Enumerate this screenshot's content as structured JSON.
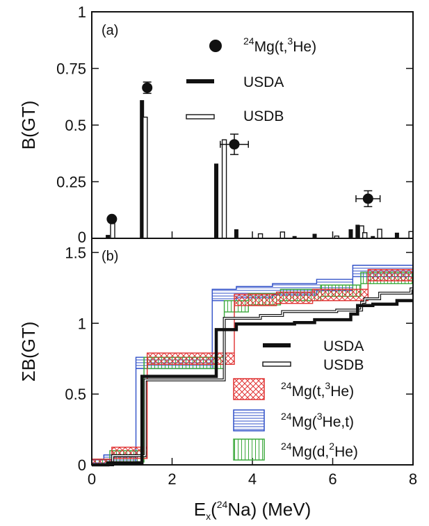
{
  "chart_data": [
    {
      "type": "bar",
      "panel_label": "(a)",
      "ylabel": "B(GT)",
      "xlim": [
        0,
        8
      ],
      "ylim": [
        0,
        1
      ],
      "yticks": [
        {
          "value": 0,
          "label": "0"
        },
        {
          "value": 0.25,
          "label": "0.25"
        },
        {
          "value": 0.5,
          "label": "0.5"
        },
        {
          "value": 0.75,
          "label": "0.75"
        },
        {
          "value": 1,
          "label": "1"
        }
      ],
      "legend_placement": "top-right",
      "legend": {
        "data": {
          "pre": "",
          "sup": "24",
          "mid": "Mg(t,",
          "sup2": "3",
          "post": "He)"
        },
        "usda": "USDA",
        "usdb": "USDB"
      },
      "series_usda": [
        {
          "x": 0.4,
          "y": 0.015
        },
        {
          "x": 1.25,
          "y": 0.61
        },
        {
          "x": 3.1,
          "y": 0.33
        },
        {
          "x": 3.6,
          "y": 0.04
        },
        {
          "x": 5.05,
          "y": 0.01
        },
        {
          "x": 5.55,
          "y": 0.02
        },
        {
          "x": 6.45,
          "y": 0.04
        },
        {
          "x": 6.62,
          "y": 0.06
        },
        {
          "x": 7.0,
          "y": 0.01
        },
        {
          "x": 7.6,
          "y": 0.025
        }
      ],
      "series_usdb": [
        {
          "x": 0.52,
          "y": 0.065
        },
        {
          "x": 1.33,
          "y": 0.535
        },
        {
          "x": 3.3,
          "y": 0.435
        },
        {
          "x": 4.2,
          "y": 0.02
        },
        {
          "x": 4.75,
          "y": 0.028
        },
        {
          "x": 6.1,
          "y": 0.01
        },
        {
          "x": 6.72,
          "y": 0.055
        },
        {
          "x": 6.8,
          "y": 0.025
        },
        {
          "x": 7.17,
          "y": 0.04
        },
        {
          "x": 7.95,
          "y": 0.03
        }
      ],
      "series_data": [
        {
          "x": 0.5,
          "y": 0.085,
          "xerr": 0,
          "yerr": 0
        },
        {
          "x": 1.38,
          "y": 0.665,
          "xerr": 0,
          "yerr": 0.025
        },
        {
          "x": 3.55,
          "y": 0.415,
          "xerr": 0.35,
          "yerr": 0.045
        },
        {
          "x": 6.88,
          "y": 0.175,
          "xerr": 0.3,
          "yerr": 0.035
        }
      ]
    },
    {
      "type": "line",
      "panel_label": "(b)",
      "ylabel": "ΣB(GT)",
      "xlabel": {
        "pre": "E",
        "sub": "x",
        "mid": "(",
        "sup": "24",
        "post": "Na) (MeV)"
      },
      "xlim": [
        0,
        8
      ],
      "ylim": [
        0,
        1.6
      ],
      "xticks": [
        {
          "value": 0,
          "label": "0"
        },
        {
          "value": 2,
          "label": "2"
        },
        {
          "value": 4,
          "label": "4"
        },
        {
          "value": 6,
          "label": "6"
        },
        {
          "value": 8,
          "label": "8"
        }
      ],
      "yticks": [
        {
          "value": 0,
          "label": "0"
        },
        {
          "value": 0.5,
          "label": "0.5"
        },
        {
          "value": 1,
          "label": "1"
        },
        {
          "value": 1.5,
          "label": "1.5"
        }
      ],
      "legend_placement": "bottom-right",
      "legend": {
        "usda": "USDA",
        "usdb": "USDB",
        "tHe": {
          "sup": "24",
          "mid": "Mg(t,",
          "sup2": "3",
          "post": "He)"
        },
        "Het": {
          "sup": "24",
          "mid": "Mg(",
          "sup2": "3",
          "post": "He,t)"
        },
        "dHe": {
          "sup": "24",
          "mid": "Mg(d,",
          "sup2": "2",
          "post": "He)"
        }
      },
      "colors": {
        "tHe": "#e03030",
        "Het": "#3050c8",
        "dHe": "#3aa83a",
        "model": "#111111"
      },
      "series_usda": [
        [
          0,
          0
        ],
        [
          0.4,
          0.015
        ],
        [
          1.25,
          0.625
        ],
        [
          3.1,
          0.955
        ],
        [
          3.6,
          0.995
        ],
        [
          5.05,
          1.005
        ],
        [
          5.55,
          1.025
        ],
        [
          6.45,
          1.065
        ],
        [
          6.62,
          1.125
        ],
        [
          7.0,
          1.135
        ],
        [
          7.6,
          1.16
        ],
        [
          8,
          1.16
        ]
      ],
      "series_usdb": [
        [
          0,
          0
        ],
        [
          0.52,
          0.065
        ],
        [
          1.33,
          0.6
        ],
        [
          3.3,
          1.035
        ],
        [
          4.2,
          1.055
        ],
        [
          4.75,
          1.083
        ],
        [
          6.1,
          1.093
        ],
        [
          6.72,
          1.148
        ],
        [
          6.8,
          1.173
        ],
        [
          7.17,
          1.213
        ],
        [
          7.95,
          1.243
        ],
        [
          8,
          1.243
        ]
      ],
      "band_tHe": [
        [
          0,
          0
        ],
        [
          0.5,
          0.085
        ],
        [
          1.38,
          0.75
        ],
        [
          3.55,
          1.165
        ],
        [
          4.6,
          1.18
        ],
        [
          5.5,
          1.2
        ],
        [
          6.88,
          1.34
        ],
        [
          8,
          1.35
        ]
      ],
      "band_Het": [
        [
          0,
          0
        ],
        [
          0.3,
          0.03
        ],
        [
          1.1,
          0.72
        ],
        [
          3.0,
          1.2
        ],
        [
          3.6,
          1.22
        ],
        [
          4.5,
          1.24
        ],
        [
          5.6,
          1.27
        ],
        [
          6.5,
          1.37
        ],
        [
          8,
          1.38
        ]
      ],
      "band_dHe": [
        [
          0,
          0
        ],
        [
          0.45,
          0.06
        ],
        [
          1.3,
          0.72
        ],
        [
          3.3,
          1.12
        ],
        [
          3.9,
          1.17
        ],
        [
          4.7,
          1.2
        ],
        [
          5.7,
          1.23
        ],
        [
          6.7,
          1.32
        ],
        [
          8,
          1.34
        ]
      ],
      "band_halfwidth": 0.04
    }
  ]
}
